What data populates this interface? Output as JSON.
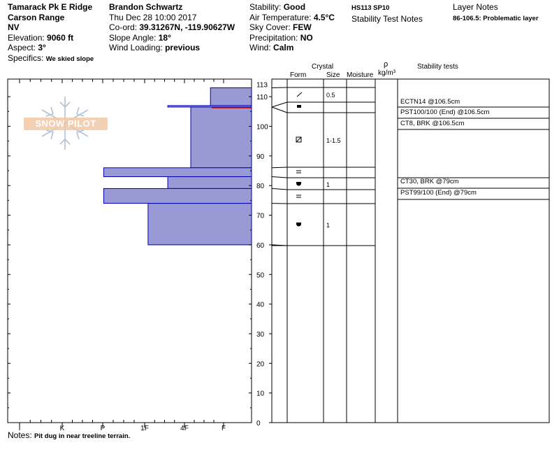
{
  "header": {
    "location": "Tamarack Pk E Ridge",
    "range": "Carson Range",
    "state": "NV",
    "elevation_label": "Elevation:",
    "elevation": "9060 ft",
    "aspect_label": "Aspect:",
    "aspect": "3°",
    "specifics_label": "Specifics:",
    "specifics": "We skied slope",
    "observer": "Brandon Schwartz",
    "datetime": "Thu Dec 28 10:00 2017",
    "coord_label": "Co-ord:",
    "coord": "39.31267N, -119.90627W",
    "slope_label": "Slope Angle:",
    "slope": "18°",
    "wind_loading_label": "Wind Loading:",
    "wind_loading": "previous",
    "stability_label": "Stability:",
    "stability": "Good",
    "air_temp_label": "Air Temperature:",
    "air_temp": "4.5°C",
    "sky_label": "Sky Cover:",
    "sky": "FEW",
    "precip_label": "Precipitation:",
    "precip": "NO",
    "wind_label": "Wind:",
    "wind": "Calm",
    "hs_sp": "HS113  SP10",
    "stability_notes_title": "Stability Test Notes",
    "layer_notes_title": "Layer Notes",
    "layer_note": "86-106.5: Problematic layer"
  },
  "logo": {
    "text": "SNOW PILOT"
  },
  "columns": {
    "crystal": "Crystal",
    "form": "Form",
    "size": "Size",
    "moisture": "Moisture",
    "rho": "ρ",
    "density_unit": "kg/m³",
    "stability_tests": "Stability tests"
  },
  "notes": {
    "label": "Notes:",
    "text": "Pit dug in near treeline terrain."
  },
  "colors": {
    "layer_fill": "#9999d6",
    "layer_stroke": "#0000aa",
    "problem_line": "#cc0000"
  },
  "chart_data": {
    "type": "bar",
    "title": "",
    "xlabel": "",
    "ylabel": "",
    "ylim": [
      0,
      113
    ],
    "height_ticks": [
      0,
      10,
      20,
      30,
      40,
      50,
      60,
      70,
      80,
      90,
      100,
      110,
      113
    ],
    "hardness_scale": [
      "I",
      "K",
      "P",
      "1F",
      "4F",
      "F"
    ],
    "hardness_ticks": [
      "I",
      "K",
      "P",
      "1F",
      "4F",
      "F"
    ],
    "layers": [
      {
        "top": 113,
        "bottom": 106.5,
        "hardness_index": 0.4
      },
      {
        "top": 107,
        "bottom": 106.5,
        "hardness_index": 1.7
      },
      {
        "top": 106.5,
        "bottom": 86,
        "hardness_index": 1.0
      },
      {
        "top": 86,
        "bottom": 83,
        "hardness_index": 3.65
      },
      {
        "top": 83,
        "bottom": 79,
        "hardness_index": 1.7
      },
      {
        "top": 79,
        "bottom": 74,
        "hardness_index": 3.65
      },
      {
        "top": 74,
        "bottom": 60,
        "hardness_index": 2.3
      }
    ],
    "problem_layer_height": 106.5,
    "crystals": [
      {
        "height": 111,
        "form": "precip-particles",
        "size": "0.5"
      },
      {
        "height": 106.5,
        "form": "surface-hoar",
        "size": ""
      },
      {
        "height": 96,
        "form": "faceted-rounded",
        "size": "1-1.5"
      },
      {
        "height": 85,
        "form": "rounding-facets",
        "size": ""
      },
      {
        "height": 81,
        "form": "depth-hoar",
        "size": "1"
      },
      {
        "height": 77,
        "form": "rounding-facets",
        "size": ""
      },
      {
        "height": 67,
        "form": "depth-hoar",
        "size": "1"
      }
    ],
    "stability_tests": [
      "ECTN14 @106.5cm",
      "PST100/100 (End) @106.5cm",
      "CT8, BRK @106.5cm",
      "CT30, BRK @79cm",
      "PST99/100 (End) @79cm"
    ]
  }
}
